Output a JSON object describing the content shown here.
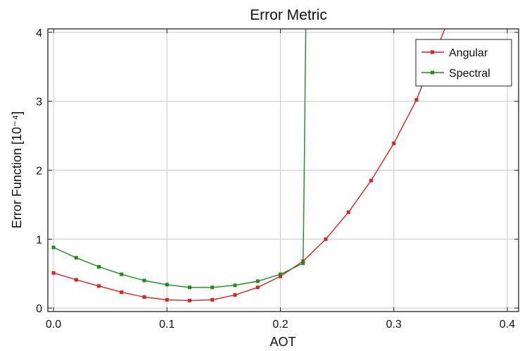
{
  "chart_data": {
    "type": "line",
    "title": "Error Metric",
    "xlabel": "AOT",
    "ylabel": "Error Function [10⁻⁴]",
    "xlim": [
      -0.005,
      0.41
    ],
    "ylim": [
      -0.05,
      4.05
    ],
    "xticks": [
      0.0,
      0.1,
      0.2,
      0.3,
      0.4
    ],
    "xtick_labels": [
      "0.0",
      "0.1",
      "0.2",
      "0.3",
      "0.4"
    ],
    "yticks": [
      0,
      1,
      2,
      3,
      4
    ],
    "ytick_labels": [
      "0",
      "1",
      "2",
      "3",
      "4"
    ],
    "grid": true,
    "legend": "top-right",
    "series": [
      {
        "name": "Angular",
        "color": "#e02020",
        "x": [
          0.0,
          0.02,
          0.04,
          0.06,
          0.08,
          0.1,
          0.12,
          0.14,
          0.16,
          0.18,
          0.2,
          0.22,
          0.24,
          0.26,
          0.28,
          0.3,
          0.32,
          0.345
        ],
        "y": [
          0.51,
          0.41,
          0.32,
          0.23,
          0.16,
          0.12,
          0.11,
          0.12,
          0.19,
          0.3,
          0.46,
          0.68,
          1.0,
          1.39,
          1.85,
          2.39,
          3.02,
          4.05
        ],
        "markers": [
          true,
          true,
          true,
          true,
          true,
          true,
          true,
          true,
          true,
          true,
          true,
          true,
          true,
          true,
          true,
          true,
          true,
          false
        ]
      },
      {
        "name": "Spectral",
        "color": "#1c8c1c",
        "x": [
          0.0,
          0.02,
          0.04,
          0.06,
          0.08,
          0.1,
          0.12,
          0.14,
          0.16,
          0.18,
          0.2,
          0.22,
          0.2205,
          0.2212,
          0.2218,
          0.2224
        ],
        "y": [
          0.88,
          0.73,
          0.6,
          0.49,
          0.4,
          0.34,
          0.3,
          0.3,
          0.33,
          0.39,
          0.49,
          0.65,
          1.2,
          2.2,
          3.2,
          4.05
        ],
        "markers": [
          true,
          true,
          true,
          true,
          true,
          true,
          true,
          true,
          true,
          true,
          true,
          true,
          false,
          false,
          false,
          false
        ]
      }
    ]
  }
}
